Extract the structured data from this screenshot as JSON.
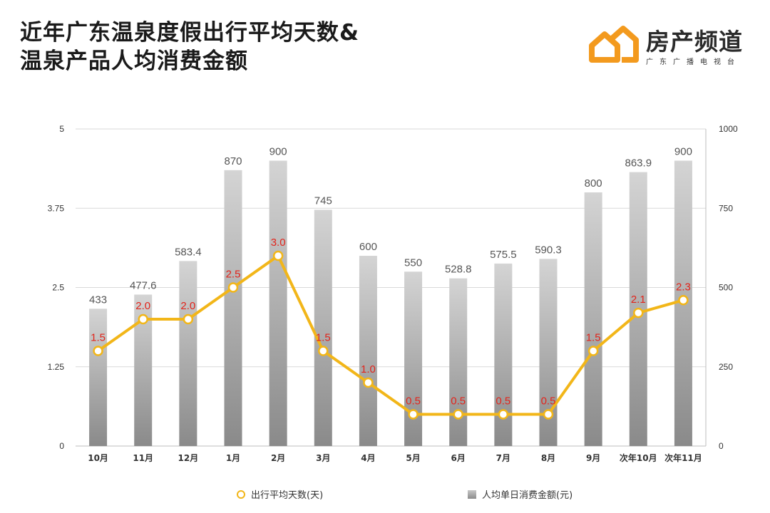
{
  "header": {
    "title_line1": "近年广东温泉度假出行平均天数&",
    "title_line2": "温泉产品人均消费金额"
  },
  "logo": {
    "name": "房产频道",
    "sub": "广东广播电视台",
    "brand_color": "#f39a1e"
  },
  "legend": {
    "line_label": "出行平均天数(天)",
    "bar_label": "人均单日消费金额(元)"
  },
  "colors": {
    "line": "#f2b619",
    "line_label": "#e2241b",
    "bar_top": "#d4d4d4",
    "bar_bottom": "#8a8a8a",
    "grid": "#d9d9d9",
    "text": "#333333"
  },
  "chart_data": {
    "type": "bar",
    "categories": [
      "10月",
      "11月",
      "12月",
      "1月",
      "2月",
      "3月",
      "4月",
      "5月",
      "6月",
      "7月",
      "8月",
      "9月",
      "次年10月",
      "次年11月"
    ],
    "series": [
      {
        "name": "人均单日消费金额(元)",
        "type": "bar",
        "axis": "right",
        "values": [
          433,
          477.6,
          583.4,
          870,
          900,
          745,
          600,
          550,
          528.8,
          575.5,
          590.3,
          800,
          863.9,
          900
        ],
        "value_labels": [
          "433",
          "477.6",
          "583.4",
          "870",
          "900",
          "745",
          "600",
          "550",
          "528.8",
          "575.5",
          "590.3",
          "800",
          "863.9",
          "900"
        ]
      },
      {
        "name": "出行平均天数(天)",
        "type": "line",
        "axis": "left",
        "values": [
          1.5,
          2.0,
          2.0,
          2.5,
          3.0,
          1.5,
          1.0,
          0.5,
          0.5,
          0.5,
          0.5,
          1.5,
          2.1,
          2.3
        ],
        "value_labels": [
          "1.5",
          "2.0",
          "2.0",
          "2.5",
          "3.0",
          "1.5",
          "1.0",
          "0.5",
          "0.5",
          "0.5",
          "0.5",
          "1.5",
          "2.1",
          "2.3"
        ]
      }
    ],
    "y_left": {
      "ylim": [
        0,
        5
      ],
      "ticks": [
        "0",
        "1.25",
        "2.5",
        "3.75",
        "5"
      ]
    },
    "y_right": {
      "ylim": [
        0,
        1000
      ],
      "ticks": [
        "0",
        "250",
        "500",
        "750",
        "1000"
      ]
    },
    "grid": true,
    "legend_position": "bottom"
  }
}
